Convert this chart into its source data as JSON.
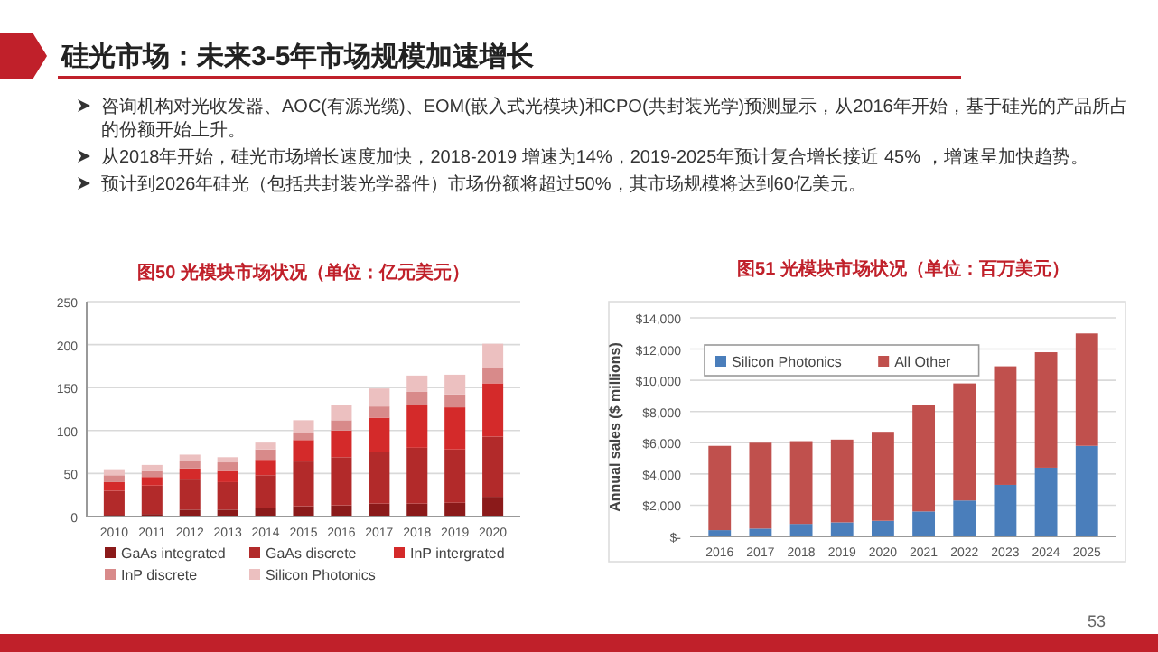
{
  "chart_data": [
    {
      "type": "other",
      "title": "硅光市场：未来3-5年市场规模加速增长",
      "annotations": [
        "咨询机构对光收发器、AOC(有源光缆)、EOM(嵌入式光模块)和CPO(共封装光学)预测显示，从2016年开始，基于硅光的产品所占的份额开始上升。",
        "从2018年开始，硅光市场增长速度加快，2018-2019 增速为14%，2019-2025年预计复合增长接近 45% ，增速呈加快趋势。",
        "预计到2026年硅光（包括共封装光学器件）市场份额将超过50%，其市场规模将达到60亿美元。",
        "53"
      ]
    },
    {
      "type": "bar",
      "stacked": true,
      "title": "图50 光模块市场状况（单位：亿元美元）",
      "categories": [
        "2010",
        "2011",
        "2012",
        "2013",
        "2014",
        "2015",
        "2016",
        "2017",
        "2018",
        "2019",
        "2020"
      ],
      "ylim": [
        0,
        250
      ],
      "yticks": [
        0,
        50,
        100,
        150,
        200,
        250
      ],
      "grid": "y",
      "legend": "bottom",
      "series": [
        {
          "name": "GaAs integrated",
          "color": "#8b1a1a",
          "values": [
            2,
            3,
            8,
            8,
            10,
            12,
            13,
            15,
            15,
            16,
            23
          ]
        },
        {
          "name": "GaAs discrete",
          "color": "#b22a2a",
          "values": [
            28,
            33,
            36,
            32,
            38,
            52,
            56,
            60,
            65,
            62,
            70
          ]
        },
        {
          "name": "InP intergrated",
          "color": "#d42a2a",
          "values": [
            10,
            10,
            12,
            13,
            18,
            25,
            31,
            40,
            50,
            49,
            62
          ]
        },
        {
          "name": "InP discrete",
          "color": "#d88a8a",
          "values": [
            8,
            7,
            9,
            10,
            12,
            8,
            12,
            13,
            15,
            15,
            18
          ]
        },
        {
          "name": "Silicon Photonics",
          "color": "#ecc0c0",
          "values": [
            7,
            7,
            7,
            6,
            8,
            15,
            18,
            21,
            19,
            23,
            28
          ]
        }
      ]
    },
    {
      "type": "bar",
      "stacked": true,
      "title": "图51 光模块市场状况（单位：百万美元）",
      "ylabel": "Annual sales ($ millions)",
      "categories": [
        "2016",
        "2017",
        "2018",
        "2019",
        "2020",
        "2021",
        "2022",
        "2023",
        "2024",
        "2025"
      ],
      "ylim": [
        0,
        14000
      ],
      "yticks": [
        {
          "value": 0,
          "label": "$-"
        },
        {
          "value": 2000,
          "label": "$2,000"
        },
        {
          "value": 4000,
          "label": "$4,000"
        },
        {
          "value": 6000,
          "label": "$6,000"
        },
        {
          "value": 8000,
          "label": "$8,000"
        },
        {
          "value": 10000,
          "label": "$10,000"
        },
        {
          "value": 12000,
          "label": "$12,000"
        },
        {
          "value": 14000,
          "label": "$14,000"
        }
      ],
      "grid": "y",
      "legend": "top left",
      "series": [
        {
          "name": "Silicon Photonics",
          "color": "#4a7ebb",
          "values": [
            400,
            500,
            800,
            900,
            1000,
            1600,
            2300,
            3300,
            4400,
            5800
          ]
        },
        {
          "name": "All Other",
          "color": "#c0504d",
          "values": [
            5400,
            5500,
            5300,
            5300,
            5700,
            6800,
            7500,
            7600,
            7400,
            7200
          ]
        }
      ]
    }
  ]
}
